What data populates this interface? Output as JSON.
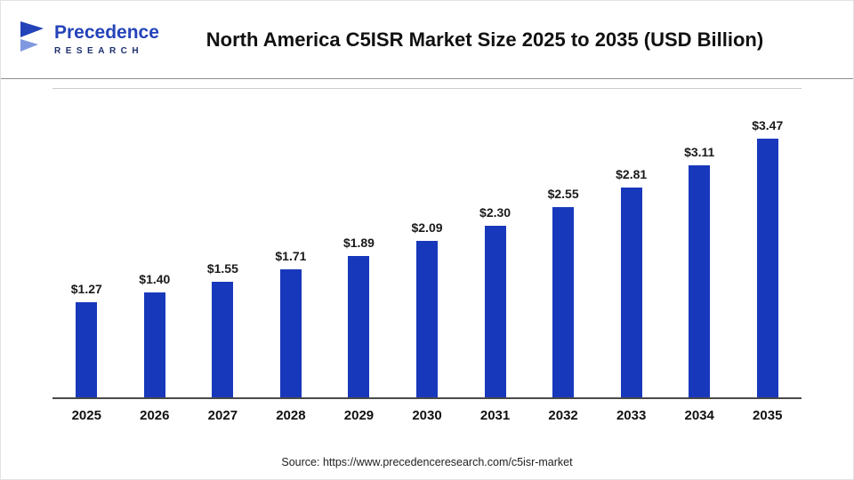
{
  "header": {
    "logo": {
      "name": "Precedence",
      "sub": "RESEARCH"
    },
    "title": "North America C5ISR Market Size 2025 to 2035 (USD Billion)"
  },
  "footer": {
    "source": "Source: https://www.precedenceresearch.com/c5isr-market"
  },
  "colors": {
    "bar": "#1838bc",
    "logo_primary": "#2443b9",
    "logo_secondary": "#1c2f6e"
  },
  "chart_data": {
    "type": "bar",
    "title": "North America C5ISR Market Size 2025 to 2035 (USD Billion)",
    "categories": [
      "2025",
      "2026",
      "2027",
      "2028",
      "2029",
      "2030",
      "2031",
      "2032",
      "2033",
      "2034",
      "2035"
    ],
    "values": [
      1.27,
      1.4,
      1.55,
      1.71,
      1.89,
      2.09,
      2.3,
      2.55,
      2.81,
      3.11,
      3.47
    ],
    "value_labels": [
      "$1.27",
      "$1.40",
      "$1.55",
      "$1.71",
      "$1.89",
      "$2.09",
      "$2.30",
      "$2.55",
      "$2.81",
      "$3.11",
      "$3.47"
    ],
    "xlabel": "",
    "ylabel": "",
    "ylim": [
      0,
      3.6
    ],
    "grid": false,
    "legend": "none",
    "bar_color": "#1838bc"
  }
}
